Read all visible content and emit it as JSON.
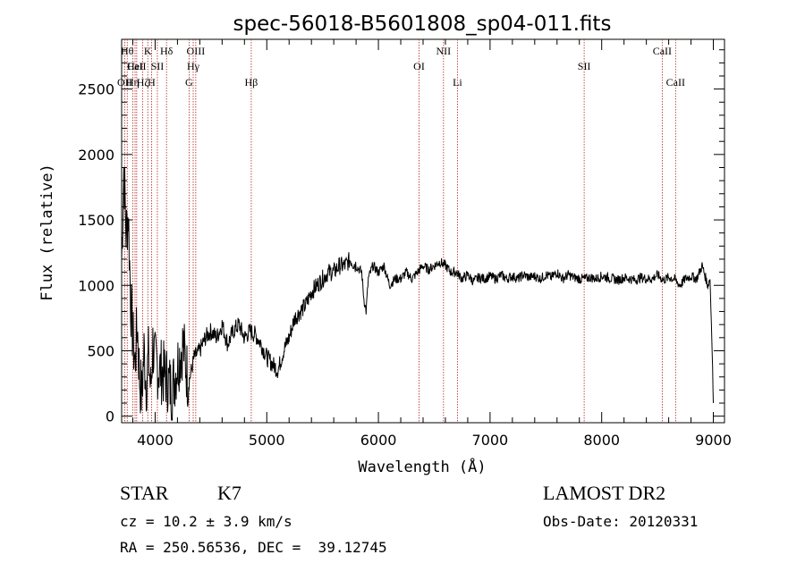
{
  "chart_data": {
    "type": "line",
    "title": "spec-56018-B5601808_sp04-011.fits",
    "xlabel": "Wavelength (Å)",
    "ylabel": "Flux (relative)",
    "xlim": [
      3700,
      9100
    ],
    "ylim": [
      -50,
      2880
    ],
    "x_ticks": [
      4000,
      5000,
      6000,
      7000,
      8000,
      9000
    ],
    "x_tick_labels": [
      "4000",
      "5000",
      "6000",
      "7000",
      "8000",
      "9000"
    ],
    "y_ticks": [
      0,
      500,
      1000,
      1500,
      2000,
      2500
    ],
    "y_tick_labels": [
      "0",
      "500",
      "1000",
      "1500",
      "2000",
      "2500"
    ],
    "grid": false,
    "series": [
      {
        "name": "flux",
        "x": [
          3700,
          3720,
          3740,
          3760,
          3780,
          3800,
          3820,
          3840,
          3860,
          3880,
          3900,
          3920,
          3940,
          3960,
          3980,
          4000,
          4050,
          4100,
          4150,
          4200,
          4250,
          4300,
          4350,
          4400,
          4450,
          4500,
          4550,
          4600,
          4650,
          4700,
          4750,
          4800,
          4850,
          4900,
          4950,
          5000,
          5050,
          5100,
          5150,
          5200,
          5250,
          5300,
          5350,
          5400,
          5450,
          5500,
          5550,
          5600,
          5650,
          5700,
          5750,
          5800,
          5850,
          5870,
          5890,
          5910,
          5950,
          6000,
          6050,
          6100,
          6150,
          6200,
          6250,
          6300,
          6350,
          6400,
          6450,
          6500,
          6550,
          6600,
          6650,
          6700,
          6750,
          6800,
          6850,
          6900,
          6950,
          7000,
          7050,
          7100,
          7150,
          7200,
          7250,
          7300,
          7350,
          7400,
          7450,
          7500,
          7550,
          7600,
          7650,
          7700,
          7750,
          7800,
          7850,
          7900,
          7950,
          8000,
          8050,
          8100,
          8150,
          8200,
          8250,
          8300,
          8350,
          8400,
          8450,
          8500,
          8550,
          8600,
          8650,
          8700,
          8750,
          8800,
          8850,
          8900,
          8950,
          8970,
          8990,
          9000
        ],
        "y": [
          1200,
          1900,
          1400,
          1550,
          900,
          600,
          400,
          700,
          300,
          150,
          500,
          250,
          450,
          200,
          550,
          400,
          350,
          300,
          200,
          400,
          550,
          250,
          450,
          500,
          600,
          650,
          600,
          700,
          550,
          650,
          700,
          600,
          650,
          620,
          550,
          450,
          400,
          350,
          500,
          600,
          750,
          800,
          850,
          950,
          1000,
          1050,
          1100,
          1100,
          1150,
          1150,
          1200,
          1150,
          1100,
          900,
          800,
          1050,
          1150,
          1100,
          1150,
          1000,
          1050,
          1050,
          1100,
          1050,
          1100,
          1150,
          1120,
          1150,
          1180,
          1150,
          1100,
          1100,
          1050,
          1080,
          1030,
          1060,
          1050,
          1070,
          1050,
          1080,
          1050,
          1070,
          1050,
          1080,
          1060,
          1070,
          1050,
          1080,
          1060,
          1100,
          1050,
          1080,
          1060,
          1050,
          1050,
          1060,
          1050,
          1070,
          1060,
          1050,
          1040,
          1060,
          1050,
          1040,
          1060,
          1050,
          1050,
          1080,
          1040,
          1060,
          1050,
          1000,
          1050,
          1070,
          1050,
          1150,
          1000,
          1050,
          500,
          100
        ]
      }
    ],
    "lines": [
      {
        "x": 3727,
        "label": "OII",
        "row": 2
      },
      {
        "x": 3750,
        "label": "Hθ",
        "row": 0
      },
      {
        "x": 3799,
        "label": "Hη",
        "row": 2
      },
      {
        "x": 3820,
        "label": "HeI",
        "row": 1
      },
      {
        "x": 3835,
        "label": "CaII",
        "row": 1
      },
      {
        "x": 3889,
        "label": "Hζ",
        "row": 2
      },
      {
        "x": 3934,
        "label": "K",
        "row": 0
      },
      {
        "x": 3968,
        "label": "H",
        "row": 2
      },
      {
        "x": 4020,
        "label": "SII",
        "row": 1
      },
      {
        "x": 4102,
        "label": "Hδ",
        "row": 0
      },
      {
        "x": 4304,
        "label": "G",
        "row": 2
      },
      {
        "x": 4341,
        "label": "Hγ",
        "row": 1
      },
      {
        "x": 4364,
        "label": "OIII",
        "row": 0
      },
      {
        "x": 4861,
        "label": "Hβ",
        "row": 2
      },
      {
        "x": 6364,
        "label": "OI",
        "row": 1
      },
      {
        "x": 6583,
        "label": "NII",
        "row": 0
      },
      {
        "x": 6708,
        "label": "Li",
        "row": 2
      },
      {
        "x": 7843,
        "label": "SII",
        "row": 1
      },
      {
        "x": 8542,
        "label": "CaII",
        "row": 0
      },
      {
        "x": 8662,
        "label": "CaII",
        "row": 2
      }
    ]
  },
  "info": {
    "object_class": "STAR",
    "subclass": "K7",
    "survey": "LAMOST DR2",
    "redshift": "cz = 10.2 ± 3.9 km/s",
    "obs_date": "Obs-Date: 20120331",
    "coords": "RA = 250.56536, DEC =  39.12745"
  }
}
